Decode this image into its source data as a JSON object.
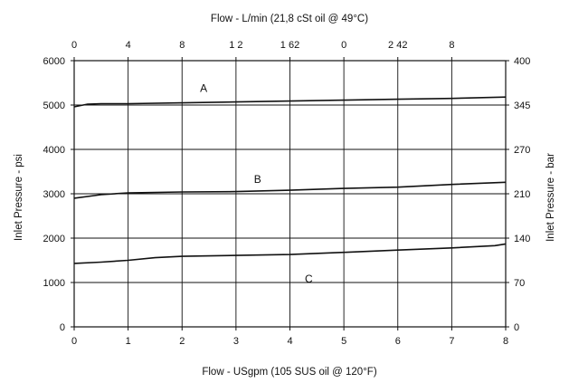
{
  "chart_data": {
    "type": "line",
    "top_axis": {
      "label": "Flow - L/min (21,8 cSt oil @ 49°C)",
      "ticks": [
        {
          "x": 0,
          "label": "0"
        },
        {
          "x": 1,
          "label": "4"
        },
        {
          "x": 2,
          "label": "8"
        },
        {
          "x": 3,
          "label": "1 2"
        },
        {
          "x": 4,
          "label": "1 62"
        },
        {
          "x": 5,
          "label": "0"
        },
        {
          "x": 6,
          "label": "2 42"
        },
        {
          "x": 7,
          "label": "8"
        }
      ]
    },
    "xlabel": "Flow - USgpm (105 SUS oil @ 120°F)",
    "ylabel": "Inlet Pressure - psi",
    "y2label": "Inlet Pressure - bar",
    "xlim": [
      0,
      8
    ],
    "ylim": [
      0,
      6000
    ],
    "x_ticks": [
      "0",
      "1",
      "2",
      "3",
      "4",
      "5",
      "6",
      "7",
      "8"
    ],
    "y_ticks": [
      "0",
      "1000",
      "2000",
      "3000",
      "4000",
      "5000",
      "6000"
    ],
    "y2_ticks": [
      {
        "y": 0,
        "label": "0"
      },
      {
        "y": 1000,
        "label": "70"
      },
      {
        "y": 2000,
        "label": "140"
      },
      {
        "y": 3000,
        "label": "210"
      },
      {
        "y": 4000,
        "label": "270"
      },
      {
        "y": 5000,
        "label": "345"
      },
      {
        "y": 6000,
        "label": "400"
      }
    ],
    "grid": true,
    "series": [
      {
        "name": "A",
        "label_at": {
          "x": 2.4,
          "y": 5300
        },
        "points": [
          [
            0,
            4960
          ],
          [
            0.25,
            5020
          ],
          [
            0.5,
            5030
          ],
          [
            1,
            5030
          ],
          [
            2,
            5050
          ],
          [
            3,
            5070
          ],
          [
            4,
            5090
          ],
          [
            5,
            5110
          ],
          [
            6,
            5130
          ],
          [
            7,
            5150
          ],
          [
            8,
            5180
          ]
        ]
      },
      {
        "name": "B",
        "label_at": {
          "x": 3.4,
          "y": 3250
        },
        "points": [
          [
            0,
            2900
          ],
          [
            0.5,
            2980
          ],
          [
            1,
            3020
          ],
          [
            2,
            3040
          ],
          [
            3,
            3050
          ],
          [
            4,
            3080
          ],
          [
            5,
            3120
          ],
          [
            6,
            3150
          ],
          [
            7,
            3210
          ],
          [
            8,
            3260
          ]
        ]
      },
      {
        "name": "C",
        "label_at": {
          "x": 4.35,
          "y": 1000
        },
        "points": [
          [
            0,
            1430
          ],
          [
            0.5,
            1460
          ],
          [
            1,
            1500
          ],
          [
            1.5,
            1560
          ],
          [
            2,
            1590
          ],
          [
            3,
            1610
          ],
          [
            4,
            1630
          ],
          [
            5,
            1680
          ],
          [
            6,
            1730
          ],
          [
            7,
            1780
          ],
          [
            7.8,
            1830
          ],
          [
            8,
            1870
          ]
        ]
      }
    ]
  }
}
